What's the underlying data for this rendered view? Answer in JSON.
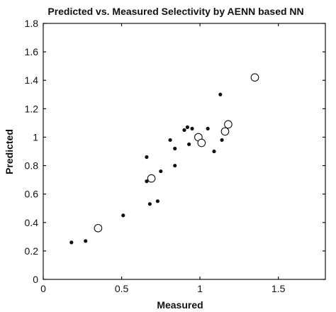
{
  "chart_data": {
    "type": "scatter",
    "title": "Predicted vs. Measured Selectivity by AENN based NN",
    "xlabel": "Measured",
    "ylabel": "Predicted",
    "xlim": [
      0,
      1.8
    ],
    "ylim": [
      0,
      1.8
    ],
    "xticks": [
      0,
      0.5,
      1,
      1.5
    ],
    "xtick_labels": [
      "0",
      "0.5",
      "1",
      "1.5"
    ],
    "yticks": [
      0,
      0.2,
      0.4,
      0.6,
      0.8,
      1,
      1.2,
      1.4,
      1.6,
      1.8
    ],
    "ytick_labels": [
      "0",
      "0.2",
      "0.4",
      "0.6",
      "0.8",
      "1",
      "1.2",
      "1.4",
      "1.6",
      "1.8"
    ],
    "grid": false,
    "series": [
      {
        "marker": "filled-dot",
        "points": [
          [
            0.18,
            0.26
          ],
          [
            0.27,
            0.27
          ],
          [
            0.51,
            0.45
          ],
          [
            0.66,
            0.69
          ],
          [
            0.66,
            0.86
          ],
          [
            0.68,
            0.53
          ],
          [
            0.73,
            0.55
          ],
          [
            0.75,
            0.76
          ],
          [
            0.81,
            0.98
          ],
          [
            0.84,
            0.8
          ],
          [
            0.84,
            0.92
          ],
          [
            0.9,
            1.05
          ],
          [
            0.92,
            1.07
          ],
          [
            0.93,
            0.95
          ],
          [
            0.95,
            1.06
          ],
          [
            1.0,
            1.0
          ],
          [
            1.05,
            1.06
          ],
          [
            1.09,
            0.9
          ],
          [
            1.13,
            1.3
          ],
          [
            1.14,
            0.98
          ]
        ]
      },
      {
        "marker": "open-circle",
        "points": [
          [
            0.35,
            0.36
          ],
          [
            0.69,
            0.71
          ],
          [
            0.99,
            1.0
          ],
          [
            1.01,
            0.96
          ],
          [
            1.16,
            1.04
          ],
          [
            1.18,
            1.09
          ],
          [
            1.35,
            1.42
          ]
        ]
      }
    ]
  }
}
